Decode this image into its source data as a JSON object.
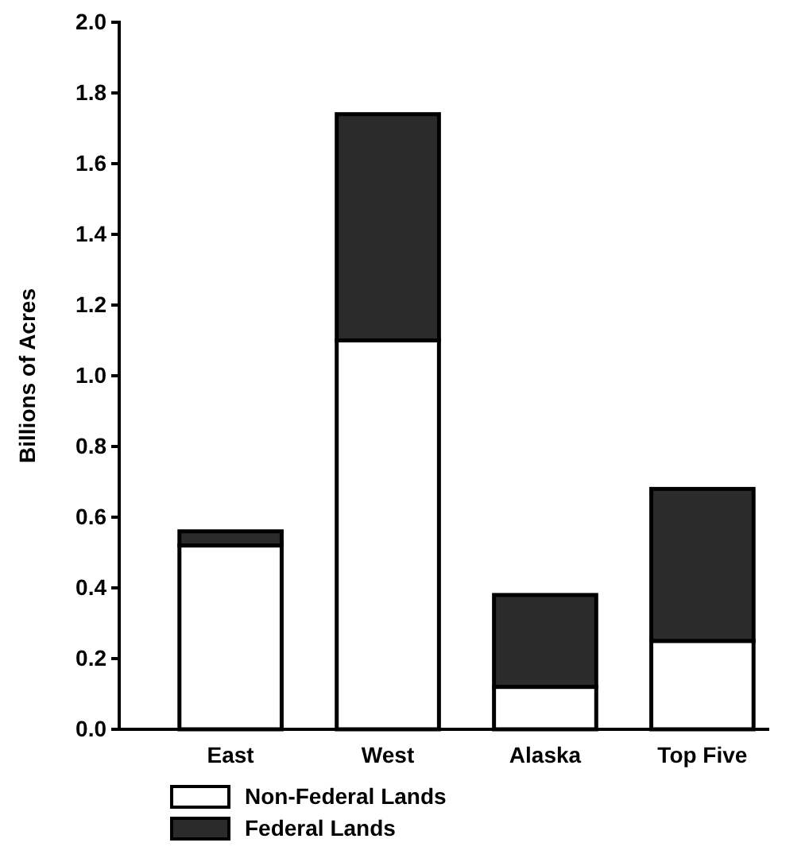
{
  "chart_data": {
    "type": "bar",
    "stacked": true,
    "ylabel": "Billions of Acres",
    "categories": [
      "East",
      "West",
      "Alaska",
      "Top Five"
    ],
    "series": [
      {
        "name": "Non-Federal Lands",
        "color": "#ffffff",
        "values": [
          0.52,
          1.1,
          0.12,
          0.25
        ]
      },
      {
        "name": "Federal Lands",
        "color": "#2b2b2b",
        "values": [
          0.04,
          0.64,
          0.26,
          0.43
        ]
      }
    ],
    "ylim": [
      0,
      2
    ],
    "yticks": [
      {
        "value": 0,
        "label": "0.0"
      },
      {
        "value": 0.2,
        "label": "0.2"
      },
      {
        "value": 0.4,
        "label": "0.4"
      },
      {
        "value": 0.6,
        "label": "0.6"
      },
      {
        "value": 0.8,
        "label": "0.8"
      },
      {
        "value": 1,
        "label": "1.0"
      },
      {
        "value": 1.2,
        "label": "1.2"
      },
      {
        "value": 1.4,
        "label": "1.4"
      },
      {
        "value": 1.6,
        "label": "1.6"
      },
      {
        "value": 1.8,
        "label": "1.8"
      },
      {
        "value": 2,
        "label": "2.0"
      }
    ],
    "legend": "bottom left"
  }
}
